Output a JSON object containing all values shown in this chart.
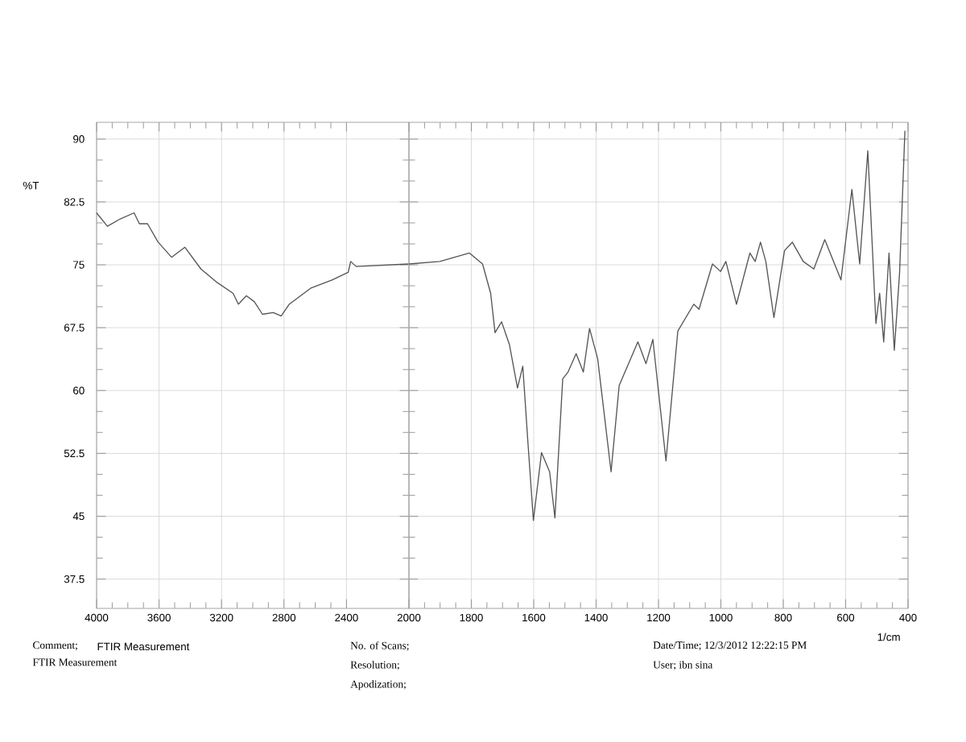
{
  "chart_data": [
    {
      "type": "line",
      "ylabel": "%T",
      "annotations": [
        "FTIR Measurement",
        "Comment;",
        "FTIR Measurement",
        "No. of Scans;",
        "Resolution;",
        "Apodization;",
        "Date/Time; 12/3/2012 12:22:15 PM",
        "User;         ibn sina"
      ],
      "xlim": [
        4000,
        2000
      ],
      "xticks": [
        4000,
        3600,
        3200,
        2800,
        2400
      ],
      "ylim": [
        34,
        92
      ],
      "yticks": [
        37.5,
        45,
        52.5,
        60,
        67.5,
        75,
        82.5,
        90
      ],
      "grid": true,
      "series": [
        {
          "color": "#555555",
          "x": [
            4000,
            3931,
            3846,
            3760,
            3726,
            3674,
            3606,
            3520,
            3435,
            3332,
            3229,
            3126,
            3092,
            3041,
            2990,
            2938,
            2869,
            2818,
            2766,
            2630,
            2492,
            2389,
            2373,
            2338,
            2000
          ],
          "values": [
            81.2,
            79.6,
            80.5,
            81.2,
            79.9,
            79.9,
            77.7,
            75.9,
            77.1,
            74.5,
            72.9,
            71.6,
            70.3,
            71.3,
            70.6,
            69.1,
            69.3,
            68.9,
            70.3,
            72.2,
            73.2,
            74.1,
            75.4,
            74.8,
            75.1
          ]
        }
      ]
    },
    {
      "type": "line",
      "xlabel": "1/cm",
      "xlim": [
        2000,
        400
      ],
      "xticks": [
        2000,
        1800,
        1600,
        1400,
        1200,
        1000,
        800,
        600,
        400
      ],
      "ylim": [
        34,
        92
      ],
      "yticks": [
        37.5,
        45,
        52.5,
        60,
        67.5,
        75,
        82.5,
        90
      ],
      "grid": true,
      "tick_labels": "x",
      "series": [
        {
          "color": "#555555",
          "x": [
            2000,
            1901,
            1806,
            1764,
            1738,
            1724,
            1703,
            1678,
            1652,
            1635,
            1618,
            1601,
            1575,
            1549,
            1532,
            1507,
            1490,
            1464,
            1441,
            1421,
            1395,
            1352,
            1326,
            1266,
            1240,
            1218,
            1176,
            1138,
            1087,
            1070,
            1027,
            1001,
            984,
            950,
            907,
            890,
            873,
            856,
            830,
            796,
            771,
            736,
            702,
            667,
            615,
            580,
            555,
            529,
            503,
            491,
            478,
            461,
            444,
            427,
            410
          ],
          "values": [
            75.1,
            75.4,
            76.4,
            75.1,
            71.6,
            66.9,
            68.2,
            65.5,
            60.3,
            62.9,
            53.5,
            44.5,
            52.6,
            50.3,
            44.8,
            61.4,
            62.2,
            64.4,
            62.2,
            67.4,
            63.8,
            50.3,
            60.6,
            65.8,
            63.2,
            66.1,
            51.6,
            67.1,
            70.3,
            69.7,
            75.1,
            74.2,
            75.4,
            70.3,
            76.4,
            75.4,
            77.7,
            75.4,
            68.7,
            76.7,
            77.7,
            75.4,
            74.5,
            78.0,
            73.2,
            84.0,
            75.1,
            88.6,
            68.0,
            71.6,
            65.8,
            76.4,
            64.8,
            74.1,
            91
          ]
        }
      ]
    }
  ]
}
